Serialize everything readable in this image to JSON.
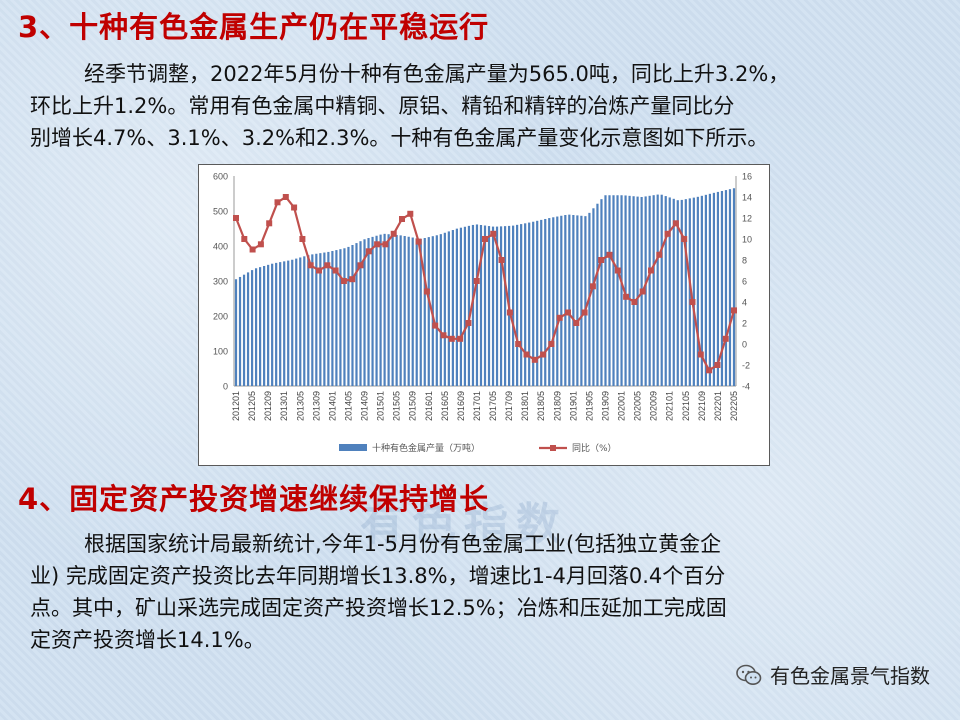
{
  "section1": {
    "heading": "3、十种有色金属生产仍在平稳运行",
    "lines": [
      "经季节调整，2022年5月份十种有色金属产量为565.0吨，同比上升3.2%，",
      "环比上升1.2%。常用有色金属中精铜、原铝、精铅和精锌的冶炼产量同比分",
      "别增长4.7%、3.1%、3.2%和2.3%。十种有色金属产量变化示意图如下所示。"
    ]
  },
  "section2": {
    "heading": "4、固定资产投资增速继续保持增长",
    "lines": [
      "根据国家统计局最新统计,今年1-5月份有色金属工业(包括独立黄金企",
      "业) 完成固定资产投资比去年同期增长13.8%，增速比1-4月回落0.4个百分",
      "点。其中，矿山采选完成固定资产投资增长12.5%；冶炼和压延加工完成固",
      "定资产投资增长14.1%。"
    ]
  },
  "watermark": "有色指数",
  "footer": {
    "label": "有色金属景气指数",
    "icon": "wechat-icon"
  },
  "chart_data": {
    "type": "bar+line",
    "title": "",
    "y_left_lim": [
      0,
      600
    ],
    "y_left_ticks": [
      0,
      100,
      200,
      300,
      400,
      500,
      600
    ],
    "y_right_lim": [
      -4,
      16
    ],
    "y_right_ticks": [
      -4,
      -2,
      0,
      2,
      4,
      6,
      8,
      10,
      12,
      14,
      16
    ],
    "x_tick_labels": [
      "201201",
      "201205",
      "201209",
      "201301",
      "201305",
      "201309",
      "201401",
      "201405",
      "201409",
      "201501",
      "201505",
      "201509",
      "201601",
      "201605",
      "201609",
      "201701",
      "201705",
      "201709",
      "201801",
      "201805",
      "201809",
      "201901",
      "201905",
      "201909",
      "202001",
      "202005",
      "202009",
      "202101",
      "202105",
      "202109",
      "202201",
      "202205"
    ],
    "months_count": 125,
    "colors": {
      "bars": "#4f81bd",
      "line": "#c0504d"
    },
    "series": [
      {
        "name": "十种有色金属产量（万吨）",
        "kind": "bar",
        "axis": "left",
        "anchors": [
          [
            0,
            305
          ],
          [
            6,
            335
          ],
          [
            12,
            350
          ],
          [
            18,
            360
          ],
          [
            24,
            375
          ],
          [
            30,
            383
          ],
          [
            36,
            395
          ],
          [
            42,
            420
          ],
          [
            48,
            435
          ],
          [
            54,
            430
          ],
          [
            60,
            420
          ],
          [
            66,
            432
          ],
          [
            72,
            450
          ],
          [
            78,
            462
          ],
          [
            84,
            455
          ],
          [
            90,
            458
          ],
          [
            96,
            468
          ],
          [
            102,
            480
          ],
          [
            108,
            490
          ],
          [
            114,
            485
          ],
          [
            120,
            545
          ],
          [
            126,
            545
          ],
          [
            132,
            540
          ],
          [
            138,
            548
          ],
          [
            144,
            530
          ],
          [
            150,
            540
          ],
          [
            156,
            553
          ],
          [
            162,
            565
          ]
        ]
      },
      {
        "name": "同比（%）",
        "kind": "line",
        "axis": "right",
        "anchors": [
          [
            0,
            12.0
          ],
          [
            2,
            10.0
          ],
          [
            4,
            9.0
          ],
          [
            6,
            9.5
          ],
          [
            8,
            11.5
          ],
          [
            10,
            13.5
          ],
          [
            12,
            14.0
          ],
          [
            14,
            13.0
          ],
          [
            16,
            10.0
          ],
          [
            18,
            7.5
          ],
          [
            20,
            7.0
          ],
          [
            22,
            7.5
          ],
          [
            24,
            7.0
          ],
          [
            27,
            5.5
          ],
          [
            30,
            7.5
          ],
          [
            33,
            9.5
          ],
          [
            36,
            9.5
          ],
          [
            39,
            11.0
          ],
          [
            41,
            12.8
          ],
          [
            43,
            12.0
          ],
          [
            45,
            7.5
          ],
          [
            47,
            2.5
          ],
          [
            49,
            1.0
          ],
          [
            52,
            0.5
          ],
          [
            54,
            0.5
          ],
          [
            56,
            2.0
          ],
          [
            58,
            6.0
          ],
          [
            60,
            10.0
          ],
          [
            62,
            10.5
          ],
          [
            64,
            8.0
          ],
          [
            66,
            3.0
          ],
          [
            68,
            0.0
          ],
          [
            70,
            -1.0
          ],
          [
            72,
            -1.5
          ],
          [
            74,
            -1.0
          ],
          [
            76,
            0.0
          ],
          [
            78,
            2.5
          ],
          [
            80,
            3.0
          ],
          [
            82,
            2.0
          ],
          [
            84,
            3.0
          ],
          [
            86,
            5.5
          ],
          [
            88,
            8.0
          ],
          [
            90,
            8.5
          ],
          [
            92,
            7.0
          ],
          [
            94,
            4.5
          ],
          [
            96,
            4.0
          ],
          [
            98,
            5.0
          ],
          [
            100,
            7.0
          ],
          [
            102,
            8.5
          ],
          [
            104,
            10.5
          ],
          [
            106,
            11.5
          ],
          [
            108,
            10.0
          ],
          [
            110,
            4.0
          ],
          [
            112,
            -1.0
          ],
          [
            114,
            -2.5
          ],
          [
            116,
            -2.0
          ],
          [
            118,
            0.5
          ],
          [
            120,
            3.2
          ]
        ]
      }
    ]
  }
}
